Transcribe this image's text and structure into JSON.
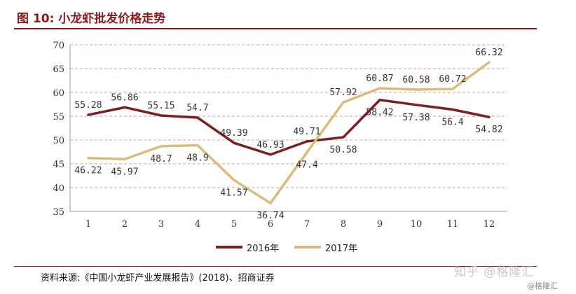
{
  "title": "图 10: 小龙虾批发价格走势",
  "source": "资料来源:《中国小龙虾产业发展报告》(2018)、招商证券",
  "watermark": {
    "main": "知乎 @格隆汇",
    "small": "@格隆汇"
  },
  "chart_data": {
    "type": "line",
    "title": "图 10: 小龙虾批发价格走势",
    "xlabel": "",
    "ylabel": "",
    "categories": [
      "1",
      "2",
      "3",
      "4",
      "5",
      "6",
      "7",
      "8",
      "9",
      "10",
      "11",
      "12"
    ],
    "ylim": [
      35,
      70
    ],
    "yticks": [
      35,
      40,
      45,
      50,
      55,
      60,
      65,
      70
    ],
    "grid": "horizontal-dashed",
    "legend_position": "bottom-center",
    "series": [
      {
        "name": "2016年",
        "color": "#7b1f1f",
        "values": [
          55.28,
          56.86,
          55.15,
          54.7,
          49.39,
          46.93,
          49.71,
          50.58,
          58.42,
          57.38,
          56.4,
          54.82
        ],
        "labels": [
          "55.28",
          "56.86",
          "55.15",
          "54.7",
          "49.39",
          "46.93",
          "49.71",
          "50.58",
          "58.42",
          "57.38",
          "56.4",
          "54.82"
        ]
      },
      {
        "name": "2017年",
        "color": "#d9bb7a",
        "values": [
          46.22,
          45.97,
          48.7,
          48.9,
          41.57,
          36.74,
          47.4,
          57.92,
          60.87,
          60.58,
          60.72,
          66.32
        ],
        "labels": [
          "46.22",
          "45.97",
          "48.7",
          "48.9",
          "41.57",
          "36.74",
          "47.4",
          "57.92",
          "60.87",
          "60.58",
          "60.72",
          "66.32"
        ]
      }
    ]
  }
}
